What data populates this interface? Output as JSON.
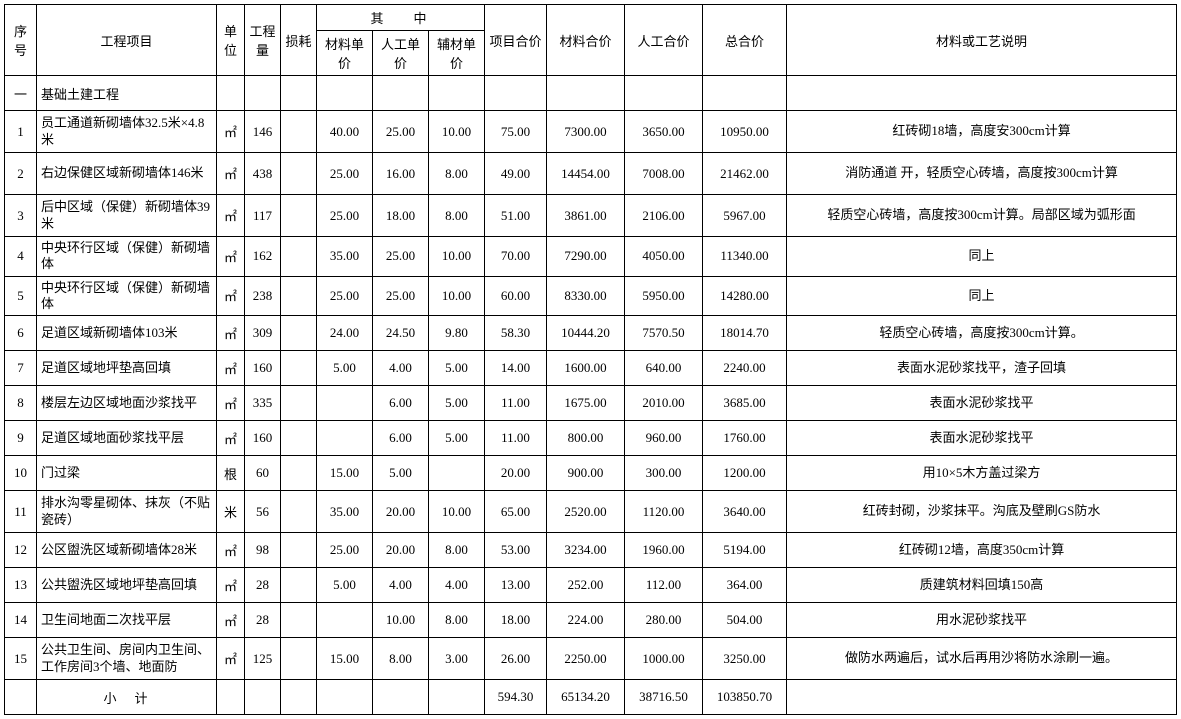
{
  "headers": {
    "seq": "序号",
    "item": "工程项目",
    "unit": "单位",
    "qty": "工程量",
    "loss": "损耗",
    "among": "其中",
    "mat_price": "材料单价",
    "lab_price": "人工单价",
    "aux_price": "辅材单价",
    "unit_price": "项目合价",
    "mat_total": "材料合价",
    "lab_total": "人工合价",
    "total": "总合价",
    "note": "材料或工艺说明"
  },
  "section": {
    "seq": "一",
    "name": "基础土建工程"
  },
  "rows": [
    {
      "seq": "1",
      "item": "员工通道新砌墙体32.5米×4.8米",
      "unit": "㎡",
      "qty": "146",
      "loss": "",
      "mp": "40.00",
      "lp": "25.00",
      "ap": "10.00",
      "up": "75.00",
      "mt": "7300.00",
      "lt": "3650.00",
      "tt": "10950.00",
      "note": "红砖砌18墙，高度安300cm计算"
    },
    {
      "seq": "2",
      "item": "右边保健区域新砌墙体146米",
      "unit": "㎡",
      "qty": "438",
      "loss": "",
      "mp": "25.00",
      "lp": "16.00",
      "ap": "8.00",
      "up": "49.00",
      "mt": "14454.00",
      "lt": "7008.00",
      "tt": "21462.00",
      "note": "消防通道 开，轻质空心砖墙，高度按300cm计算"
    },
    {
      "seq": "3",
      "item": "后中区域（保健）新砌墙体39米",
      "unit": "㎡",
      "qty": "117",
      "loss": "",
      "mp": "25.00",
      "lp": "18.00",
      "ap": "8.00",
      "up": "51.00",
      "mt": "3861.00",
      "lt": "2106.00",
      "tt": "5967.00",
      "note": "轻质空心砖墙，高度按300cm计算。局部区域为弧形面"
    },
    {
      "seq": "4",
      "item": "中央环行区域（保健）新砌墙体",
      "unit": "㎡",
      "qty": "162",
      "loss": "",
      "mp": "35.00",
      "lp": "25.00",
      "ap": "10.00",
      "up": "70.00",
      "mt": "7290.00",
      "lt": "4050.00",
      "tt": "11340.00",
      "note": "同上"
    },
    {
      "seq": "5",
      "item": "中央环行区域（保健）新砌墙体",
      "unit": "㎡",
      "qty": "238",
      "loss": "",
      "mp": "25.00",
      "lp": "25.00",
      "ap": "10.00",
      "up": "60.00",
      "mt": "8330.00",
      "lt": "5950.00",
      "tt": "14280.00",
      "note": "同上"
    },
    {
      "seq": "6",
      "item": "足道区域新砌墙体103米",
      "unit": "㎡",
      "qty": "309",
      "loss": "",
      "mp": "24.00",
      "lp": "24.50",
      "ap": "9.80",
      "up": "58.30",
      "mt": "10444.20",
      "lt": "7570.50",
      "tt": "18014.70",
      "note": "轻质空心砖墙，高度按300cm计算。"
    },
    {
      "seq": "7",
      "item": "足道区域地坪垫高回填",
      "unit": "㎡",
      "qty": "160",
      "loss": "",
      "mp": "5.00",
      "lp": "4.00",
      "ap": "5.00",
      "up": "14.00",
      "mt": "1600.00",
      "lt": "640.00",
      "tt": "2240.00",
      "note": "表面水泥砂浆找平，渣子回填"
    },
    {
      "seq": "8",
      "item": "楼层左边区域地面沙浆找平",
      "unit": "㎡",
      "qty": "335",
      "loss": "",
      "mp": "",
      "lp": "6.00",
      "ap": "5.00",
      "up": "11.00",
      "mt": "1675.00",
      "lt": "2010.00",
      "tt": "3685.00",
      "note": "表面水泥砂浆找平"
    },
    {
      "seq": "9",
      "item": "足道区域地面砂浆找平层",
      "unit": "㎡",
      "qty": "160",
      "loss": "",
      "mp": "",
      "lp": "6.00",
      "ap": "5.00",
      "up": "11.00",
      "mt": "800.00",
      "lt": "960.00",
      "tt": "1760.00",
      "note": "表面水泥砂浆找平"
    },
    {
      "seq": "10",
      "item": "门过梁",
      "unit": "根",
      "qty": "60",
      "loss": "",
      "mp": "15.00",
      "lp": "5.00",
      "ap": "",
      "up": "20.00",
      "mt": "900.00",
      "lt": "300.00",
      "tt": "1200.00",
      "note": "用10×5木方盖过梁方"
    },
    {
      "seq": "11",
      "item": "排水沟零星砌体、抹灰（不贴瓷砖）",
      "unit": "米",
      "qty": "56",
      "loss": "",
      "mp": "35.00",
      "lp": "20.00",
      "ap": "10.00",
      "up": "65.00",
      "mt": "2520.00",
      "lt": "1120.00",
      "tt": "3640.00",
      "note": "红砖封砌，沙浆抹平。沟底及壁刷GS防水"
    },
    {
      "seq": "12",
      "item": "公区盥洗区域新砌墙体28米",
      "unit": "㎡",
      "qty": "98",
      "loss": "",
      "mp": "25.00",
      "lp": "20.00",
      "ap": "8.00",
      "up": "53.00",
      "mt": "3234.00",
      "lt": "1960.00",
      "tt": "5194.00",
      "note": "红砖砌12墙，高度350cm计算"
    },
    {
      "seq": "13",
      "item": "公共盥洗区域地坪垫高回填",
      "unit": "㎡",
      "qty": "28",
      "loss": "",
      "mp": "5.00",
      "lp": "4.00",
      "ap": "4.00",
      "up": "13.00",
      "mt": "252.00",
      "lt": "112.00",
      "tt": "364.00",
      "note": "质建筑材料回填150高"
    },
    {
      "seq": "14",
      "item": "卫生间地面二次找平层",
      "unit": "㎡",
      "qty": "28",
      "loss": "",
      "mp": "",
      "lp": "10.00",
      "ap": "8.00",
      "up": "18.00",
      "mt": "224.00",
      "lt": "280.00",
      "tt": "504.00",
      "note": "用水泥砂浆找平"
    },
    {
      "seq": "15",
      "item": "公共卫生间、房间内卫生间、工作房间3个墙、地面防",
      "unit": "㎡",
      "qty": "125",
      "loss": "",
      "mp": "15.00",
      "lp": "8.00",
      "ap": "3.00",
      "up": "26.00",
      "mt": "2250.00",
      "lt": "1000.00",
      "tt": "3250.00",
      "note": "做防水两遍后，试水后再用沙将防水涂刷一遍。"
    }
  ],
  "subtotal": {
    "label": "小计",
    "up": "594.30",
    "mt": "65134.20",
    "lt": "38716.50",
    "tt": "103850.70"
  }
}
